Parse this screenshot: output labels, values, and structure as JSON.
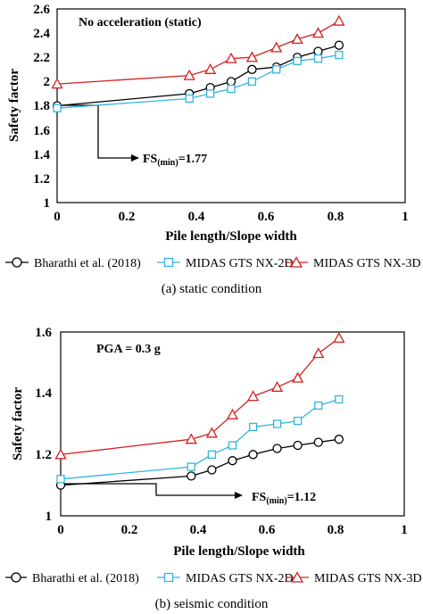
{
  "colors": {
    "bharathi": "#000000",
    "gts2d": "#33b5e0",
    "gts3d": "#d42020"
  },
  "legend": {
    "bharathi": "Bharathi et al. (2018)",
    "gts2d": "MIDAS GTS NX-2D",
    "gts3d": "MIDAS GTS NX-3D"
  },
  "chart_data": [
    {
      "type": "line",
      "annotation": "No acceleration (static)",
      "fs_min_label": "FS",
      "fs_min_sub": "(min)",
      "fs_min_value": "=1.77",
      "xlabel": "Pile length/Slope width",
      "ylabel": "Safety factor",
      "xlim": [
        0,
        1
      ],
      "ylim": [
        1,
        2.6
      ],
      "xticks": [
        "0",
        "0.2",
        "0.4",
        "0.6",
        "0.8",
        "1"
      ],
      "yticks": [
        "1",
        "1.2",
        "1.4",
        "1.6",
        "1.8",
        "2",
        "2.2",
        "2.4",
        "2.6"
      ],
      "series": [
        {
          "name": "Bharathi et al. (2018)",
          "marker": "circle",
          "x": [
            0,
            0.38,
            0.44,
            0.5,
            0.56,
            0.63,
            0.69,
            0.75,
            0.81
          ],
          "y": [
            1.8,
            1.9,
            1.95,
            2.0,
            2.1,
            2.12,
            2.2,
            2.25,
            2.3
          ]
        },
        {
          "name": "MIDAS GTS NX-2D",
          "marker": "square",
          "x": [
            0,
            0.38,
            0.44,
            0.5,
            0.56,
            0.63,
            0.69,
            0.75,
            0.81
          ],
          "y": [
            1.78,
            1.86,
            1.9,
            1.94,
            2.0,
            2.1,
            2.17,
            2.19,
            2.22
          ]
        },
        {
          "name": "MIDAS GTS NX-3D",
          "marker": "triangle",
          "x": [
            0,
            0.38,
            0.44,
            0.5,
            0.56,
            0.63,
            0.69,
            0.75,
            0.81
          ],
          "y": [
            1.98,
            2.05,
            2.1,
            2.19,
            2.2,
            2.28,
            2.35,
            2.4,
            2.5
          ]
        }
      ],
      "caption": "(a) static condition"
    },
    {
      "type": "line",
      "annotation": "PGA = 0.3 g",
      "fs_min_label": "FS",
      "fs_min_sub": "(min)",
      "fs_min_value": "=1.12",
      "xlabel": "Pile length/Slope width",
      "ylabel": "Safety factor",
      "xlim": [
        0,
        1
      ],
      "ylim": [
        1,
        1.6
      ],
      "xticks": [
        "0",
        "0.2",
        "0.4",
        "0.6",
        "0.8",
        "1"
      ],
      "yticks": [
        "1",
        "1.2",
        "1.4",
        "1.6"
      ],
      "series": [
        {
          "name": "Bharathi et al. (2018)",
          "marker": "circle",
          "x": [
            0,
            0.38,
            0.44,
            0.5,
            0.56,
            0.63,
            0.69,
            0.75,
            0.81
          ],
          "y": [
            1.1,
            1.13,
            1.15,
            1.18,
            1.2,
            1.22,
            1.23,
            1.24,
            1.25
          ]
        },
        {
          "name": "MIDAS GTS NX-2D",
          "marker": "square",
          "x": [
            0,
            0.38,
            0.44,
            0.5,
            0.56,
            0.63,
            0.69,
            0.75,
            0.81
          ],
          "y": [
            1.12,
            1.16,
            1.2,
            1.23,
            1.29,
            1.3,
            1.31,
            1.36,
            1.38
          ]
        },
        {
          "name": "MIDAS GTS NX-3D",
          "marker": "triangle",
          "x": [
            0,
            0.38,
            0.44,
            0.5,
            0.56,
            0.63,
            0.69,
            0.75,
            0.81
          ],
          "y": [
            1.2,
            1.25,
            1.27,
            1.33,
            1.39,
            1.42,
            1.45,
            1.53,
            1.58
          ]
        }
      ],
      "caption": "(b) seismic condition"
    }
  ]
}
